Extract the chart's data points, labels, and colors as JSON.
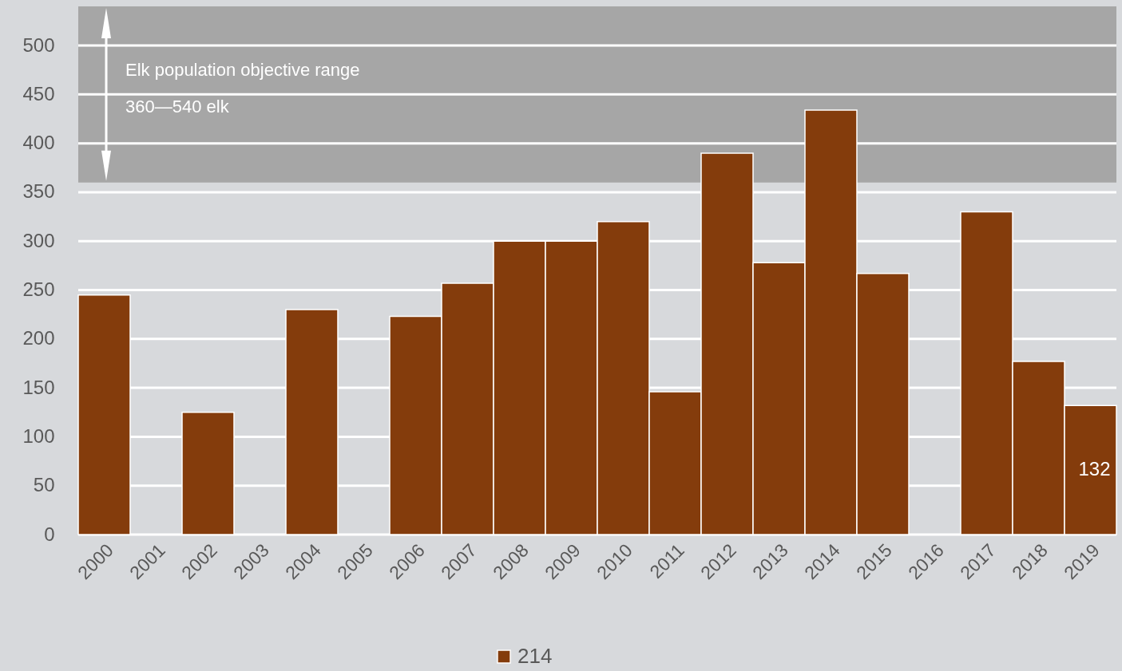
{
  "chart_data": {
    "type": "bar",
    "categories": [
      "2000",
      "2001",
      "2002",
      "2003",
      "2004",
      "2005",
      "2006",
      "2007",
      "2008",
      "2009",
      "2010",
      "2011",
      "2012",
      "2013",
      "2014",
      "2015",
      "2016",
      "2017",
      "2018",
      "2019"
    ],
    "series": [
      {
        "name": "214",
        "color": "#843c0c",
        "values": [
          245,
          null,
          125,
          null,
          230,
          null,
          223,
          257,
          300,
          300,
          320,
          146,
          390,
          278,
          434,
          267,
          null,
          330,
          177,
          132
        ],
        "value_labels": [
          null,
          null,
          null,
          null,
          null,
          null,
          null,
          null,
          null,
          null,
          null,
          null,
          null,
          null,
          null,
          null,
          null,
          null,
          null,
          "132"
        ]
      }
    ],
    "ylim": [
      0,
      540
    ],
    "yticks": [
      0,
      50,
      100,
      150,
      200,
      250,
      300,
      350,
      400,
      450,
      500
    ],
    "grid": "y",
    "legend": "bottom",
    "bands": [
      {
        "axis": "y",
        "from": 360,
        "to": 540,
        "label": "Elk population objective range",
        "color": "#a6a6a6"
      }
    ],
    "annotations": [
      "360—540 elk"
    ]
  }
}
